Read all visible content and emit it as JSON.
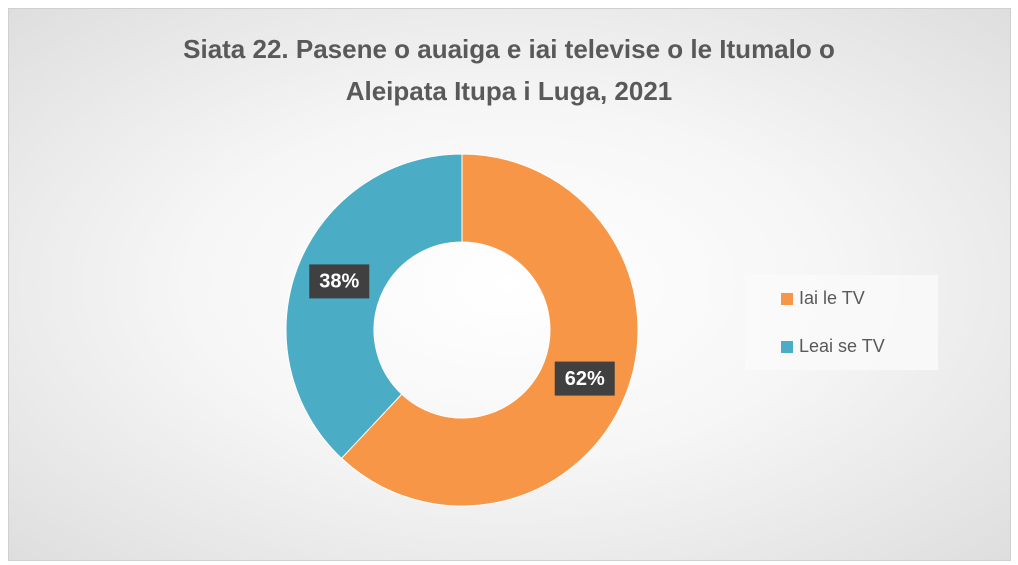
{
  "chart_data": {
    "type": "donut",
    "title": "Siata 22. Pasene o auaiga e iai televise o le Itumalo o Aleipata Itupa i Luga, 2021",
    "categories": [
      "Iai le TV",
      "Leai se TV"
    ],
    "values": [
      62,
      38
    ],
    "value_labels": [
      "62%",
      "38%"
    ],
    "colors": [
      "#f79646",
      "#4bacc6"
    ],
    "legend": "right"
  }
}
